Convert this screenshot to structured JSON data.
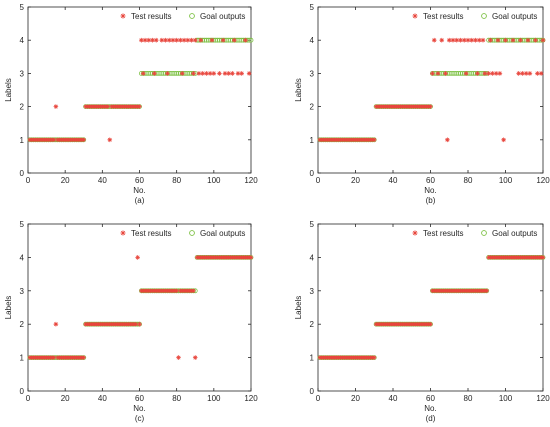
{
  "figure": {
    "panel_captions": [
      "(a)",
      "(b)",
      "(c)",
      "(d)"
    ]
  },
  "colors": {
    "test_marker": "#e8453c",
    "goal_marker": "#7cc043",
    "axis": "#262626"
  },
  "chart_data": [
    {
      "type": "scatter",
      "caption": "(a)",
      "xlabel": "No.",
      "ylabel": "Labels",
      "xlim": [
        0,
        120
      ],
      "ylim": [
        0,
        5
      ],
      "xticks": [
        0,
        20,
        40,
        60,
        80,
        100,
        120
      ],
      "yticks": [
        0,
        1,
        2,
        3,
        4,
        5
      ],
      "grid": false,
      "legend": "top-right",
      "goal_segments": [
        [
          1,
          30,
          1
        ],
        [
          31,
          60,
          2
        ],
        [
          61,
          90,
          3
        ],
        [
          91,
          120,
          4
        ]
      ],
      "test_segments": [
        [
          1,
          14,
          1
        ],
        [
          16,
          30,
          1
        ],
        [
          31,
          43,
          2
        ],
        [
          45,
          60,
          2
        ]
      ],
      "test_points": [
        [
          15,
          2
        ],
        [
          44,
          1
        ],
        [
          61,
          4
        ],
        [
          63,
          4
        ],
        [
          65,
          4
        ],
        [
          67,
          4
        ],
        [
          69,
          4
        ],
        [
          72,
          4
        ],
        [
          74,
          4
        ],
        [
          76,
          4
        ],
        [
          78,
          4
        ],
        [
          80,
          4
        ],
        [
          82,
          4
        ],
        [
          84,
          4
        ],
        [
          86,
          4
        ],
        [
          88,
          4
        ],
        [
          90,
          4
        ],
        [
          62,
          3
        ],
        [
          68,
          3
        ],
        [
          75,
          3
        ],
        [
          83,
          3
        ],
        [
          89,
          3
        ],
        [
          92,
          3
        ],
        [
          94,
          3
        ],
        [
          96,
          3
        ],
        [
          98,
          3
        ],
        [
          100,
          3
        ],
        [
          103,
          3
        ],
        [
          106,
          3
        ],
        [
          108,
          3
        ],
        [
          110,
          3
        ],
        [
          113,
          3
        ],
        [
          115,
          3
        ],
        [
          119,
          3
        ],
        [
          93,
          4
        ],
        [
          99,
          4
        ],
        [
          105,
          4
        ],
        [
          111,
          4
        ],
        [
          117,
          4
        ]
      ],
      "series": [
        {
          "name": "Test results",
          "marker": "*",
          "color": "#e8453c"
        },
        {
          "name": "Goal outputs",
          "marker": "o",
          "color": "#7cc043"
        }
      ]
    },
    {
      "type": "scatter",
      "caption": "(b)",
      "xlabel": "No.",
      "ylabel": "Labels",
      "xlim": [
        0,
        120
      ],
      "ylim": [
        0,
        5
      ],
      "xticks": [
        0,
        20,
        40,
        60,
        80,
        100,
        120
      ],
      "yticks": [
        0,
        1,
        2,
        3,
        4,
        5
      ],
      "grid": false,
      "legend": "top-right",
      "goal_segments": [
        [
          1,
          30,
          1
        ],
        [
          31,
          60,
          2
        ],
        [
          61,
          90,
          3
        ],
        [
          91,
          120,
          4
        ]
      ],
      "test_segments": [
        [
          1,
          30,
          1
        ],
        [
          31,
          60,
          2
        ]
      ],
      "test_points": [
        [
          69,
          1
        ],
        [
          99,
          1
        ],
        [
          62,
          4
        ],
        [
          66,
          4
        ],
        [
          70,
          4
        ],
        [
          72,
          4
        ],
        [
          74,
          4
        ],
        [
          76,
          4
        ],
        [
          78,
          4
        ],
        [
          80,
          4
        ],
        [
          82,
          4
        ],
        [
          84,
          4
        ],
        [
          86,
          4
        ],
        [
          88,
          4
        ],
        [
          61,
          3
        ],
        [
          64,
          3
        ],
        [
          68,
          3
        ],
        [
          79,
          3
        ],
        [
          85,
          3
        ],
        [
          89,
          3
        ],
        [
          91,
          3
        ],
        [
          93,
          3
        ],
        [
          95,
          3
        ],
        [
          97,
          3
        ],
        [
          107,
          3
        ],
        [
          109,
          3
        ],
        [
          111,
          3
        ],
        [
          113,
          3
        ],
        [
          117,
          3
        ],
        [
          119,
          3
        ],
        [
          92,
          4
        ],
        [
          96,
          4
        ],
        [
          100,
          4
        ],
        [
          104,
          4
        ],
        [
          108,
          4
        ],
        [
          112,
          4
        ],
        [
          116,
          4
        ],
        [
          120,
          4
        ]
      ],
      "series": [
        {
          "name": "Test results",
          "marker": "*",
          "color": "#e8453c"
        },
        {
          "name": "Goal outputs",
          "marker": "o",
          "color": "#7cc043"
        }
      ]
    },
    {
      "type": "scatter",
      "caption": "(c)",
      "xlabel": "No.",
      "ylabel": "Labels",
      "xlim": [
        0,
        120
      ],
      "ylim": [
        0,
        5
      ],
      "xticks": [
        0,
        20,
        40,
        60,
        80,
        100,
        120
      ],
      "yticks": [
        0,
        1,
        2,
        3,
        4,
        5
      ],
      "grid": false,
      "legend": "top-right",
      "goal_segments": [
        [
          1,
          30,
          1
        ],
        [
          31,
          60,
          2
        ],
        [
          61,
          90,
          3
        ],
        [
          91,
          120,
          4
        ]
      ],
      "test_segments": [
        [
          1,
          14,
          1
        ],
        [
          16,
          30,
          1
        ],
        [
          31,
          58,
          2
        ],
        [
          61,
          80,
          3
        ],
        [
          82,
          89,
          3
        ],
        [
          91,
          120,
          4
        ]
      ],
      "test_points": [
        [
          15,
          2
        ],
        [
          59,
          4
        ],
        [
          60,
          2
        ],
        [
          81,
          1
        ],
        [
          90,
          1
        ]
      ],
      "series": [
        {
          "name": "Test results",
          "marker": "*",
          "color": "#e8453c"
        },
        {
          "name": "Goal outputs",
          "marker": "o",
          "color": "#7cc043"
        }
      ]
    },
    {
      "type": "scatter",
      "caption": "(d)",
      "xlabel": "No.",
      "ylabel": "Labels",
      "xlim": [
        0,
        120
      ],
      "ylim": [
        0,
        5
      ],
      "xticks": [
        0,
        20,
        40,
        60,
        80,
        100,
        120
      ],
      "yticks": [
        0,
        1,
        2,
        3,
        4,
        5
      ],
      "grid": false,
      "legend": "top-right",
      "goal_segments": [
        [
          1,
          30,
          1
        ],
        [
          31,
          60,
          2
        ],
        [
          61,
          90,
          3
        ],
        [
          91,
          120,
          4
        ]
      ],
      "test_segments": [
        [
          1,
          30,
          1
        ],
        [
          31,
          60,
          2
        ],
        [
          61,
          90,
          3
        ],
        [
          91,
          120,
          4
        ]
      ],
      "test_points": [],
      "series": [
        {
          "name": "Test results",
          "marker": "*",
          "color": "#e8453c"
        },
        {
          "name": "Goal outputs",
          "marker": "o",
          "color": "#7cc043"
        }
      ]
    }
  ]
}
